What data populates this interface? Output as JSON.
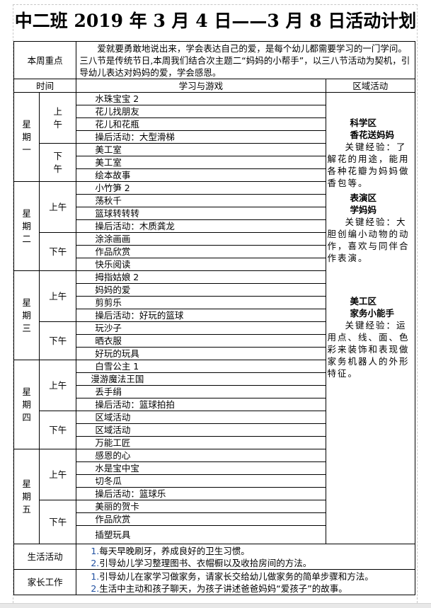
{
  "title": "中二班 2019 年 3 月 4 日——3 月 8 日活动计划",
  "focus": {
    "label": "本周重点",
    "text": "爱就要勇敢地说出来，学会表达自己的爱，是每个幼儿都需要学习的一门学问。三八节是传统节日,本周我们结合次主题二“妈妈的小帮手”，以三八节活动为契机，引导幼儿表达对妈妈的爱，学会感恩。"
  },
  "headers": {
    "time": "时间",
    "activities": "学习与游戏",
    "area": "区域活动"
  },
  "days": [
    {
      "name": "星期一",
      "am_label": "上午",
      "pm_label": "下午",
      "am": [
        "水珠宝宝 2",
        "花儿找朋友",
        "花儿和花瓶",
        "操后活动：大型滑梯"
      ],
      "pm": [
        "美工室",
        "美工室",
        "绘本故事"
      ]
    },
    {
      "name": "星期二",
      "am_label": "上午",
      "pm_label": "下午",
      "am": [
        "小竹笋 2",
        "荡秋千",
        "篮球转转转",
        "操后活动：木质龚龙"
      ],
      "pm": [
        "涂涂画画",
        "作品欣赏",
        "快乐阅读"
      ]
    },
    {
      "name": "星期三",
      "am_label": "上午",
      "pm_label": "下午",
      "am": [
        "拇指姑娘 2",
        "妈妈的爱",
        "剪剪乐",
        "操后活动：好玩的篮球"
      ],
      "pm": [
        "玩沙子",
        "晒衣服",
        "好玩的玩具"
      ]
    },
    {
      "name": "星期四",
      "am_label": "上午",
      "pm_label": "下午",
      "am": [
        "白雪公主 1",
        "漫游魔法王国",
        "丢手绢",
        "操后活动：篮球拍拍"
      ],
      "pm": [
        "区域活动",
        "区域活动",
        "万能工匠"
      ]
    },
    {
      "name": "星期五",
      "am_label": "上午",
      "pm_label": "下午",
      "am": [
        "感恩的心",
        "水是宝中宝",
        "切冬瓜",
        "操后活动：篮球乐"
      ],
      "pm": [
        "美丽的贺卡",
        "作品欣赏",
        "插塑玩具"
      ]
    }
  ],
  "areas": [
    {
      "zone": "科学区",
      "activity": "香花送妈妈",
      "experience": "关键经验：了解花的用途，能用各种花瓣为妈妈做香包等。"
    },
    {
      "zone": "表演区",
      "activity": "学妈妈",
      "experience": "关键经验：大胆创编小动物的动作，喜欢与同伴合作表演。"
    },
    {
      "zone": "美工区",
      "activity": "家务小能手",
      "experience": "关键经验：运用点、线、面、色彩来装饰和表现做家务机器人的外形特征。"
    }
  ],
  "life": {
    "label": "生活活动",
    "items": [
      {
        "num": "1.",
        "text": "每天早晚刷牙，养成良好的卫生习惯。"
      },
      {
        "num": "2.",
        "text": "引导幼儿学习整理图书、衣帽橱以及收拾房间的方法。"
      }
    ]
  },
  "parents": {
    "label": "家长工作",
    "items": [
      {
        "num": "1.",
        "text": "引导幼儿在家学习做家务，请家长交给幼儿做家务的简单步骤和方法。"
      },
      {
        "num": "2.",
        "text": "生活中主动和孩子聊天，为孩子讲述爸爸妈妈“爱孩子”的故事。"
      }
    ]
  }
}
